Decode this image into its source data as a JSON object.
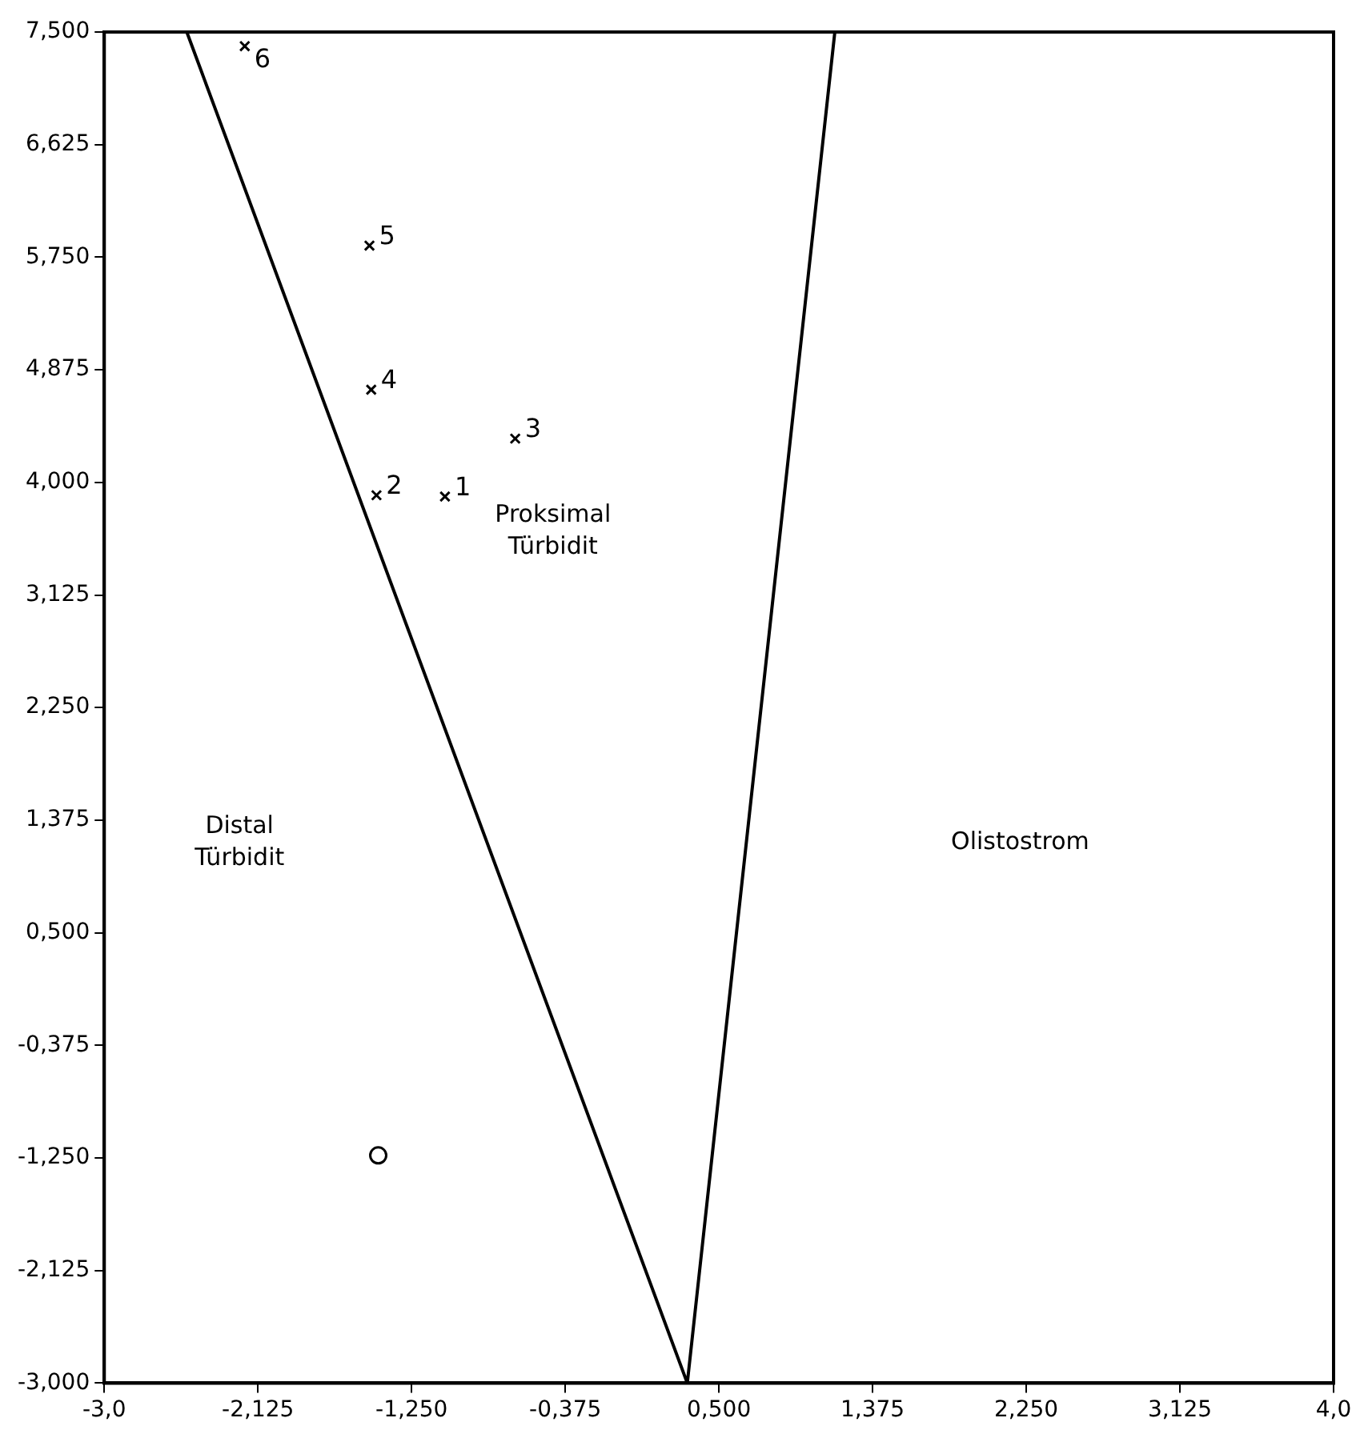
{
  "chart_data": {
    "type": "scatter",
    "xlim": [
      -3.0,
      4.0
    ],
    "ylim": [
      -3.0,
      7.5
    ],
    "xticks": [
      {
        "value": -3.0,
        "label": "-3,0"
      },
      {
        "value": -2.125,
        "label": "-2,125"
      },
      {
        "value": -1.25,
        "label": "-1,250"
      },
      {
        "value": -0.375,
        "label": "-0,375"
      },
      {
        "value": 0.5,
        "label": "0,500"
      },
      {
        "value": 1.375,
        "label": "1,375"
      },
      {
        "value": 2.25,
        "label": "2,250"
      },
      {
        "value": 3.125,
        "label": "3,125"
      },
      {
        "value": 4.0,
        "label": "4,0"
      }
    ],
    "yticks": [
      {
        "value": 7.5,
        "label": "7,500"
      },
      {
        "value": 6.625,
        "label": "6,625"
      },
      {
        "value": 5.75,
        "label": "5,750"
      },
      {
        "value": 4.875,
        "label": "4,875"
      },
      {
        "value": 4.0,
        "label": "4,000"
      },
      {
        "value": 3.125,
        "label": "3,125"
      },
      {
        "value": 2.25,
        "label": "2,250"
      },
      {
        "value": 1.375,
        "label": "1,375"
      },
      {
        "value": 0.5,
        "label": "0,500"
      },
      {
        "value": -0.375,
        "label": "-0,375"
      },
      {
        "value": -1.25,
        "label": "-1,250"
      },
      {
        "value": -2.125,
        "label": "-2,125"
      },
      {
        "value": -3.0,
        "label": "-3,000"
      }
    ],
    "grid": false,
    "legend": false,
    "series": [
      {
        "type": "line",
        "color": "#000000",
        "marker": "none",
        "line_style": "solid",
        "x": [
          -2.53,
          0.32,
          1.16
        ],
        "values": [
          7.5,
          -3.0,
          7.5
        ]
      },
      {
        "color": "#000000",
        "marker": "cross",
        "x": [
          -1.06,
          -1.45,
          -0.66,
          -1.48,
          -1.49,
          -2.2
        ],
        "values": [
          3.89,
          3.9,
          4.34,
          4.72,
          5.84,
          7.39
        ]
      },
      {
        "color": "#000000",
        "marker": "circle",
        "x": [
          -1.44
        ],
        "values": [
          -1.23
        ]
      }
    ],
    "annotations": [
      "Distal\nTürbidit",
      "Proksimal\nTürbidit",
      "Olistostrom",
      {
        "text": "1",
        "x": -1.06,
        "y": 3.89
      },
      {
        "text": "2",
        "x": -1.45,
        "y": 3.9
      },
      {
        "text": "3",
        "x": -0.66,
        "y": 4.34
      },
      {
        "text": "4",
        "x": -1.48,
        "y": 4.72
      },
      {
        "text": "5",
        "x": -1.49,
        "y": 5.84
      },
      {
        "text": "6",
        "x": -2.2,
        "y": 7.39
      }
    ]
  }
}
